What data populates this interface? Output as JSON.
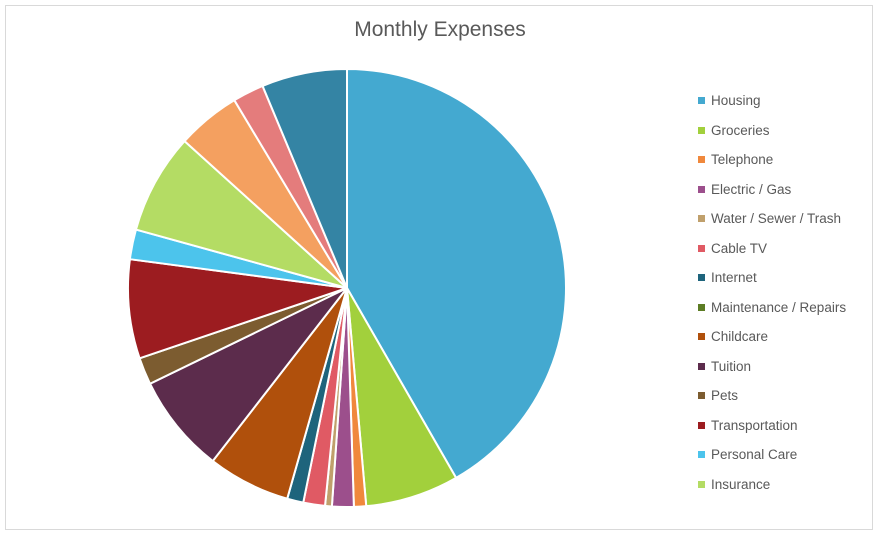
{
  "chart_data": {
    "type": "pie",
    "title": "Monthly Expenses",
    "legend_position": "right",
    "start_angle_deg": 0,
    "direction": "clockwise",
    "slices": [
      {
        "label": "Housing",
        "value": 41.7,
        "color": "#44a9d0"
      },
      {
        "label": "Groceries",
        "value": 6.9,
        "color": "#a2d03c"
      },
      {
        "label": "Telephone",
        "value": 0.9,
        "color": "#f0883c"
      },
      {
        "label": "Electric / Gas",
        "value": 1.6,
        "color": "#9c4f8c"
      },
      {
        "label": "Water / Sewer / Trash",
        "value": 0.5,
        "color": "#c0a06c"
      },
      {
        "label": "Cable TV",
        "value": 1.6,
        "color": "#e05a64"
      },
      {
        "label": "Internet",
        "value": 1.2,
        "color": "#1e647c"
      },
      {
        "label": "Maintenance / Repairs",
        "value": 0.0,
        "color": "#5c7c24"
      },
      {
        "label": "Childcare",
        "value": 6.1,
        "color": "#b0500c"
      },
      {
        "label": "Tuition",
        "value": 7.3,
        "color": "#5c2c4c"
      },
      {
        "label": "Pets",
        "value": 2.0,
        "color": "#7c5c30"
      },
      {
        "label": "Transportation",
        "value": 7.3,
        "color": "#9c1c20"
      },
      {
        "label": "Personal Care",
        "value": 2.2,
        "color": "#4cc4ec"
      },
      {
        "label": "Insurance",
        "value": 7.4,
        "color": "#b4dc64"
      },
      {
        "label": "",
        "value": 4.7,
        "color": "#f4a060"
      },
      {
        "label": "",
        "value": 2.3,
        "color": "#e47c7c"
      },
      {
        "label": "",
        "value": 6.3,
        "color": "#3484a4"
      }
    ]
  },
  "legend": {
    "items": [
      {
        "label": "Housing",
        "color": "#44a9d0"
      },
      {
        "label": "Groceries",
        "color": "#a2d03c"
      },
      {
        "label": "Telephone",
        "color": "#f0883c"
      },
      {
        "label": "Electric / Gas",
        "color": "#9c4f8c"
      },
      {
        "label": "Water / Sewer / Trash",
        "color": "#c0a06c"
      },
      {
        "label": "Cable TV",
        "color": "#e05a64"
      },
      {
        "label": "Internet",
        "color": "#1e647c"
      },
      {
        "label": "Maintenance / Repairs",
        "color": "#5c7c24"
      },
      {
        "label": "Childcare",
        "color": "#b0500c"
      },
      {
        "label": "Tuition",
        "color": "#5c2c4c"
      },
      {
        "label": "Pets",
        "color": "#7c5c30"
      },
      {
        "label": "Transportation",
        "color": "#9c1c20"
      },
      {
        "label": "Personal Care",
        "color": "#4cc4ec"
      },
      {
        "label": "Insurance",
        "color": "#b4dc64"
      }
    ]
  }
}
